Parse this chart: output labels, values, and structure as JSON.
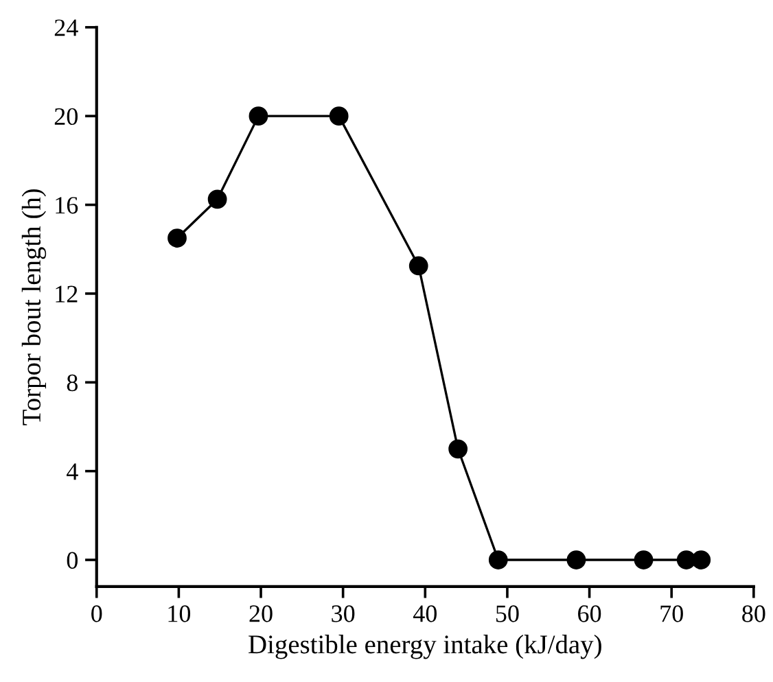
{
  "chart_data": {
    "type": "line",
    "xlabel": "Digestible energy intake (kJ/day)",
    "ylabel": "Torpor bout length (h)",
    "series": [
      {
        "color": "#000000",
        "x": [
          9.8,
          14.7,
          19.7,
          29.5,
          39.2,
          44.0,
          48.9,
          58.4,
          66.6,
          71.8,
          73.6
        ],
        "values": [
          14.5,
          16.25,
          20,
          20,
          13.25,
          5.0,
          0,
          0,
          0,
          0,
          0
        ]
      }
    ],
    "marker": "circle",
    "line_style": "solid",
    "grid": false,
    "xlim": [
      0,
      80
    ],
    "xticks": [
      0,
      10,
      20,
      30,
      40,
      50,
      60,
      70,
      80
    ],
    "ylim": [
      -1.2,
      24
    ],
    "yticks": [
      0,
      4,
      8,
      12,
      16,
      20,
      24
    ]
  }
}
